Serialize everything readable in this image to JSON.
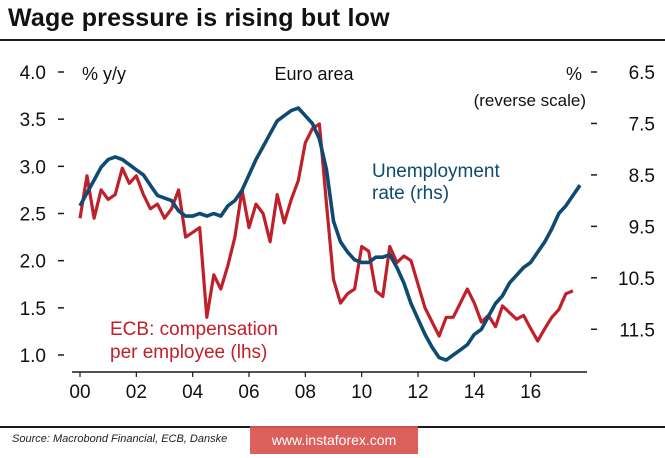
{
  "header": {
    "title": "Wage pressure is rising but low"
  },
  "footer": {
    "source": "Source: Macrobond Financial, ECB, Danske",
    "watermark": "www.instaforex.com"
  },
  "chart_data": {
    "type": "line",
    "title": "Euro area",
    "left_axis": {
      "label": "% y/y",
      "ticks": [
        "4.0",
        "3.5",
        "3.0",
        "2.5",
        "2.0",
        "1.5",
        "1.0"
      ],
      "ylim": [
        1.0,
        4.0
      ]
    },
    "right_axis": {
      "label": "%",
      "label2": "(reverse scale)",
      "ticks": [
        "6.5",
        "7.5",
        "8.5",
        "9.5",
        "10.5",
        "11.5"
      ],
      "ylim": [
        12.0,
        6.5
      ],
      "reversed": true
    },
    "x_ticks": [
      "00",
      "02",
      "04",
      "06",
      "08",
      "10",
      "12",
      "14",
      "16"
    ],
    "x_range": [
      2000,
      2018
    ],
    "grid": false,
    "colors": {
      "ecb": "#c0202a",
      "unemployment": "#0e4a72"
    },
    "series": [
      {
        "name": "ECB: compensation per employee (lhs)",
        "name_line1": "ECB: compensation",
        "name_line2": "per employee (lhs)",
        "axis": "left",
        "x": [
          2000.0,
          2000.25,
          2000.5,
          2000.75,
          2001.0,
          2001.25,
          2001.5,
          2001.75,
          2002.0,
          2002.25,
          2002.5,
          2002.75,
          2003.0,
          2003.25,
          2003.5,
          2003.75,
          2004.0,
          2004.25,
          2004.5,
          2004.75,
          2005.0,
          2005.25,
          2005.5,
          2005.75,
          2006.0,
          2006.25,
          2006.5,
          2006.75,
          2007.0,
          2007.25,
          2007.5,
          2007.75,
          2008.0,
          2008.25,
          2008.5,
          2008.75,
          2009.0,
          2009.25,
          2009.5,
          2009.75,
          2010.0,
          2010.25,
          2010.5,
          2010.75,
          2011.0,
          2011.25,
          2011.5,
          2011.75,
          2012.0,
          2012.25,
          2012.5,
          2012.75,
          2013.0,
          2013.25,
          2013.5,
          2013.75,
          2014.0,
          2014.25,
          2014.5,
          2014.75,
          2015.0,
          2015.25,
          2015.5,
          2015.75,
          2016.0,
          2016.25,
          2016.5,
          2016.75,
          2017.0,
          2017.25,
          2017.5
        ],
        "values": [
          2.45,
          2.9,
          2.45,
          2.75,
          2.65,
          2.7,
          2.98,
          2.82,
          2.9,
          2.7,
          2.55,
          2.6,
          2.45,
          2.55,
          2.75,
          2.25,
          2.3,
          2.35,
          1.4,
          1.85,
          1.7,
          1.95,
          2.25,
          2.75,
          2.35,
          2.6,
          2.5,
          2.2,
          2.7,
          2.4,
          2.65,
          2.85,
          3.25,
          3.4,
          3.45,
          2.6,
          1.8,
          1.55,
          1.65,
          1.7,
          2.15,
          2.1,
          1.68,
          1.62,
          2.15,
          1.98,
          2.05,
          2.0,
          1.75,
          1.5,
          1.35,
          1.2,
          1.4,
          1.4,
          1.55,
          1.7,
          1.55,
          1.35,
          1.42,
          1.3,
          1.52,
          1.45,
          1.38,
          1.42,
          1.28,
          1.15,
          1.28,
          1.4,
          1.48,
          1.65,
          1.68
        ]
      },
      {
        "name": "Unemployment rate (rhs)",
        "name_line1": "Unemployment",
        "name_line2": "rate (rhs)",
        "axis": "right",
        "x": [
          2000.0,
          2000.25,
          2000.5,
          2000.75,
          2001.0,
          2001.25,
          2001.5,
          2001.75,
          2002.0,
          2002.25,
          2002.5,
          2002.75,
          2003.0,
          2003.25,
          2003.5,
          2003.75,
          2004.0,
          2004.25,
          2004.5,
          2004.75,
          2005.0,
          2005.25,
          2005.5,
          2005.75,
          2006.0,
          2006.25,
          2006.5,
          2006.75,
          2007.0,
          2007.25,
          2007.5,
          2007.75,
          2008.0,
          2008.25,
          2008.5,
          2008.75,
          2009.0,
          2009.25,
          2009.5,
          2009.75,
          2010.0,
          2010.25,
          2010.5,
          2010.75,
          2011.0,
          2011.25,
          2011.5,
          2011.75,
          2012.0,
          2012.25,
          2012.5,
          2012.75,
          2013.0,
          2013.25,
          2013.5,
          2013.75,
          2014.0,
          2014.25,
          2014.5,
          2014.75,
          2015.0,
          2015.25,
          2015.5,
          2015.75,
          2016.0,
          2016.25,
          2016.5,
          2016.75,
          2017.0,
          2017.25,
          2017.5,
          2017.75
        ],
        "values": [
          9.1,
          8.85,
          8.6,
          8.35,
          8.2,
          8.15,
          8.2,
          8.3,
          8.4,
          8.5,
          8.7,
          8.9,
          8.95,
          9.0,
          9.2,
          9.3,
          9.3,
          9.25,
          9.3,
          9.25,
          9.3,
          9.1,
          9.0,
          8.8,
          8.5,
          8.2,
          7.95,
          7.7,
          7.45,
          7.35,
          7.25,
          7.2,
          7.35,
          7.5,
          7.8,
          8.4,
          9.4,
          9.8,
          10.0,
          10.15,
          10.2,
          10.2,
          10.1,
          10.1,
          10.05,
          10.3,
          10.6,
          11.0,
          11.3,
          11.6,
          11.85,
          12.05,
          12.1,
          12.0,
          11.9,
          11.8,
          11.6,
          11.5,
          11.25,
          11.0,
          10.85,
          10.6,
          10.45,
          10.3,
          10.2,
          10.0,
          9.8,
          9.55,
          9.25,
          9.1,
          8.9,
          8.7
        ]
      }
    ]
  }
}
